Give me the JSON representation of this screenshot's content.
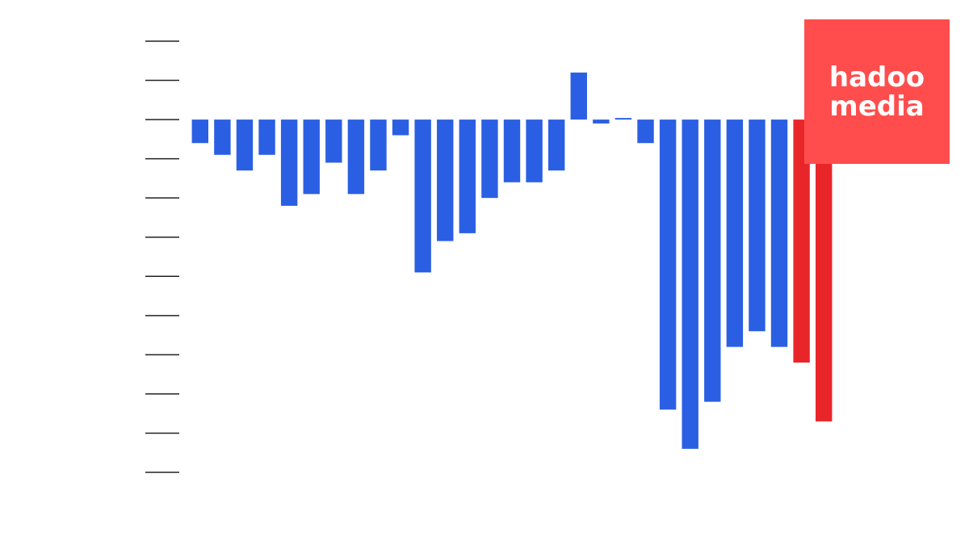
{
  "chart_data": {
    "type": "bar",
    "categories": [
      null,
      null,
      null,
      null,
      null,
      null,
      null,
      null,
      null,
      null,
      null,
      null,
      null,
      null,
      null,
      null,
      null,
      null,
      null,
      null,
      null,
      null,
      null,
      null,
      null,
      null,
      null,
      null,
      null
    ],
    "values": [
      -0.6,
      -0.9,
      -1.3,
      -0.9,
      -2.2,
      -1.9,
      -1.1,
      -1.9,
      -1.3,
      -0.4,
      -3.9,
      -3.1,
      -2.9,
      -2.0,
      -1.6,
      -1.6,
      -1.3,
      1.2,
      -0.1,
      0.04,
      -0.6,
      -7.4,
      -8.4,
      -7.2,
      -5.8,
      -5.4,
      -5.8,
      -6.2,
      -7.7
    ],
    "colors": [
      "#2b5fe3",
      "#2b5fe3",
      "#2b5fe3",
      "#2b5fe3",
      "#2b5fe3",
      "#2b5fe3",
      "#2b5fe3",
      "#2b5fe3",
      "#2b5fe3",
      "#2b5fe3",
      "#2b5fe3",
      "#2b5fe3",
      "#2b5fe3",
      "#2b5fe3",
      "#2b5fe3",
      "#2b5fe3",
      "#2b5fe3",
      "#2b5fe3",
      "#2b5fe3",
      "#2b5fe3",
      "#2b5fe3",
      "#2b5fe3",
      "#2b5fe3",
      "#2b5fe3",
      "#2b5fe3",
      "#2b5fe3",
      "#2b5fe3",
      "#e8262a",
      "#e8262a"
    ],
    "ylim": [
      -9,
      2
    ],
    "yticks": [
      -9,
      -8,
      -7,
      -6,
      -5,
      -4,
      -3,
      -2,
      -1,
      0,
      1,
      2
    ]
  },
  "watermark": {
    "line1": "hadoo",
    "line2": "media"
  }
}
